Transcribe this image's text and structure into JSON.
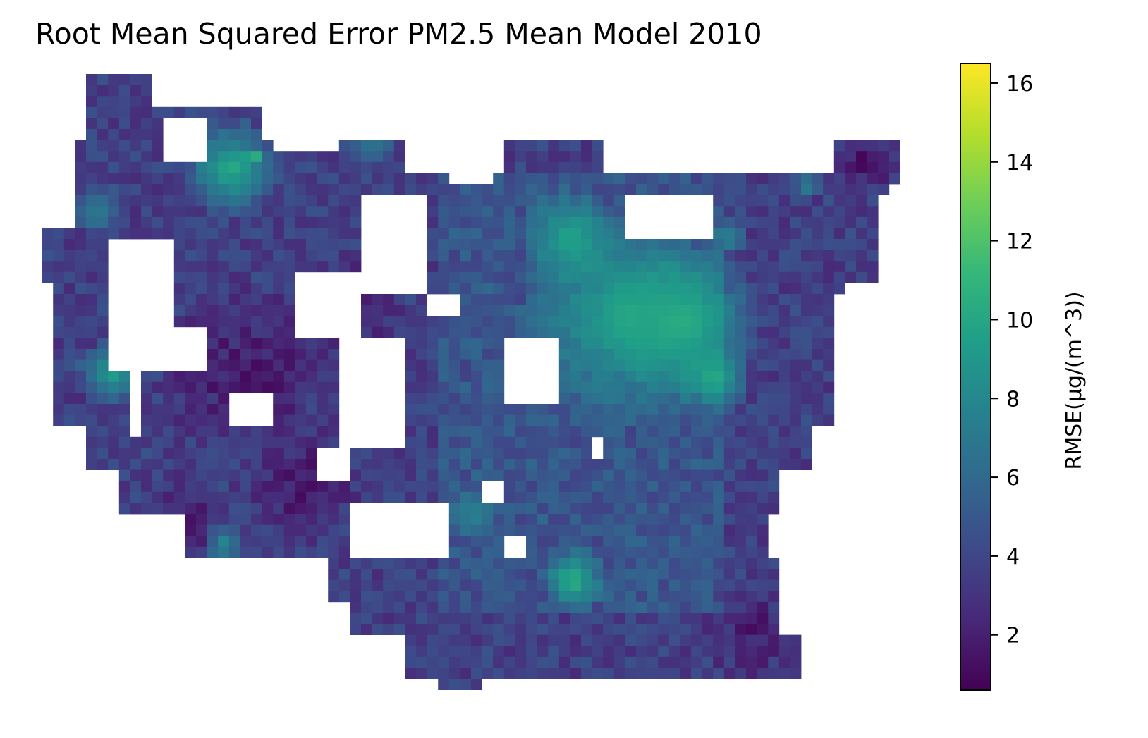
{
  "chart_data": {
    "type": "heatmap",
    "title": "Root Mean Squared Error PM2.5 Mean Model 2010",
    "colorbar": {
      "label": "RMSE(μg/(m^3))",
      "range": [
        0.6,
        16.5
      ],
      "ticks": [
        2,
        4,
        6,
        8,
        10,
        12,
        14,
        16
      ],
      "colormap": "viridis"
    },
    "grid": false,
    "axes_visible": false,
    "colors": {
      "viridis_stops": [
        "#440154",
        "#482878",
        "#3e4989",
        "#31688e",
        "#26828e",
        "#1f9e89",
        "#35b779",
        "#6ece58",
        "#b5de2b",
        "#fde725"
      ]
    }
  },
  "colorbar_tick_labels": [
    "2",
    "4",
    "6",
    "8",
    "10",
    "12",
    "14",
    "16"
  ]
}
